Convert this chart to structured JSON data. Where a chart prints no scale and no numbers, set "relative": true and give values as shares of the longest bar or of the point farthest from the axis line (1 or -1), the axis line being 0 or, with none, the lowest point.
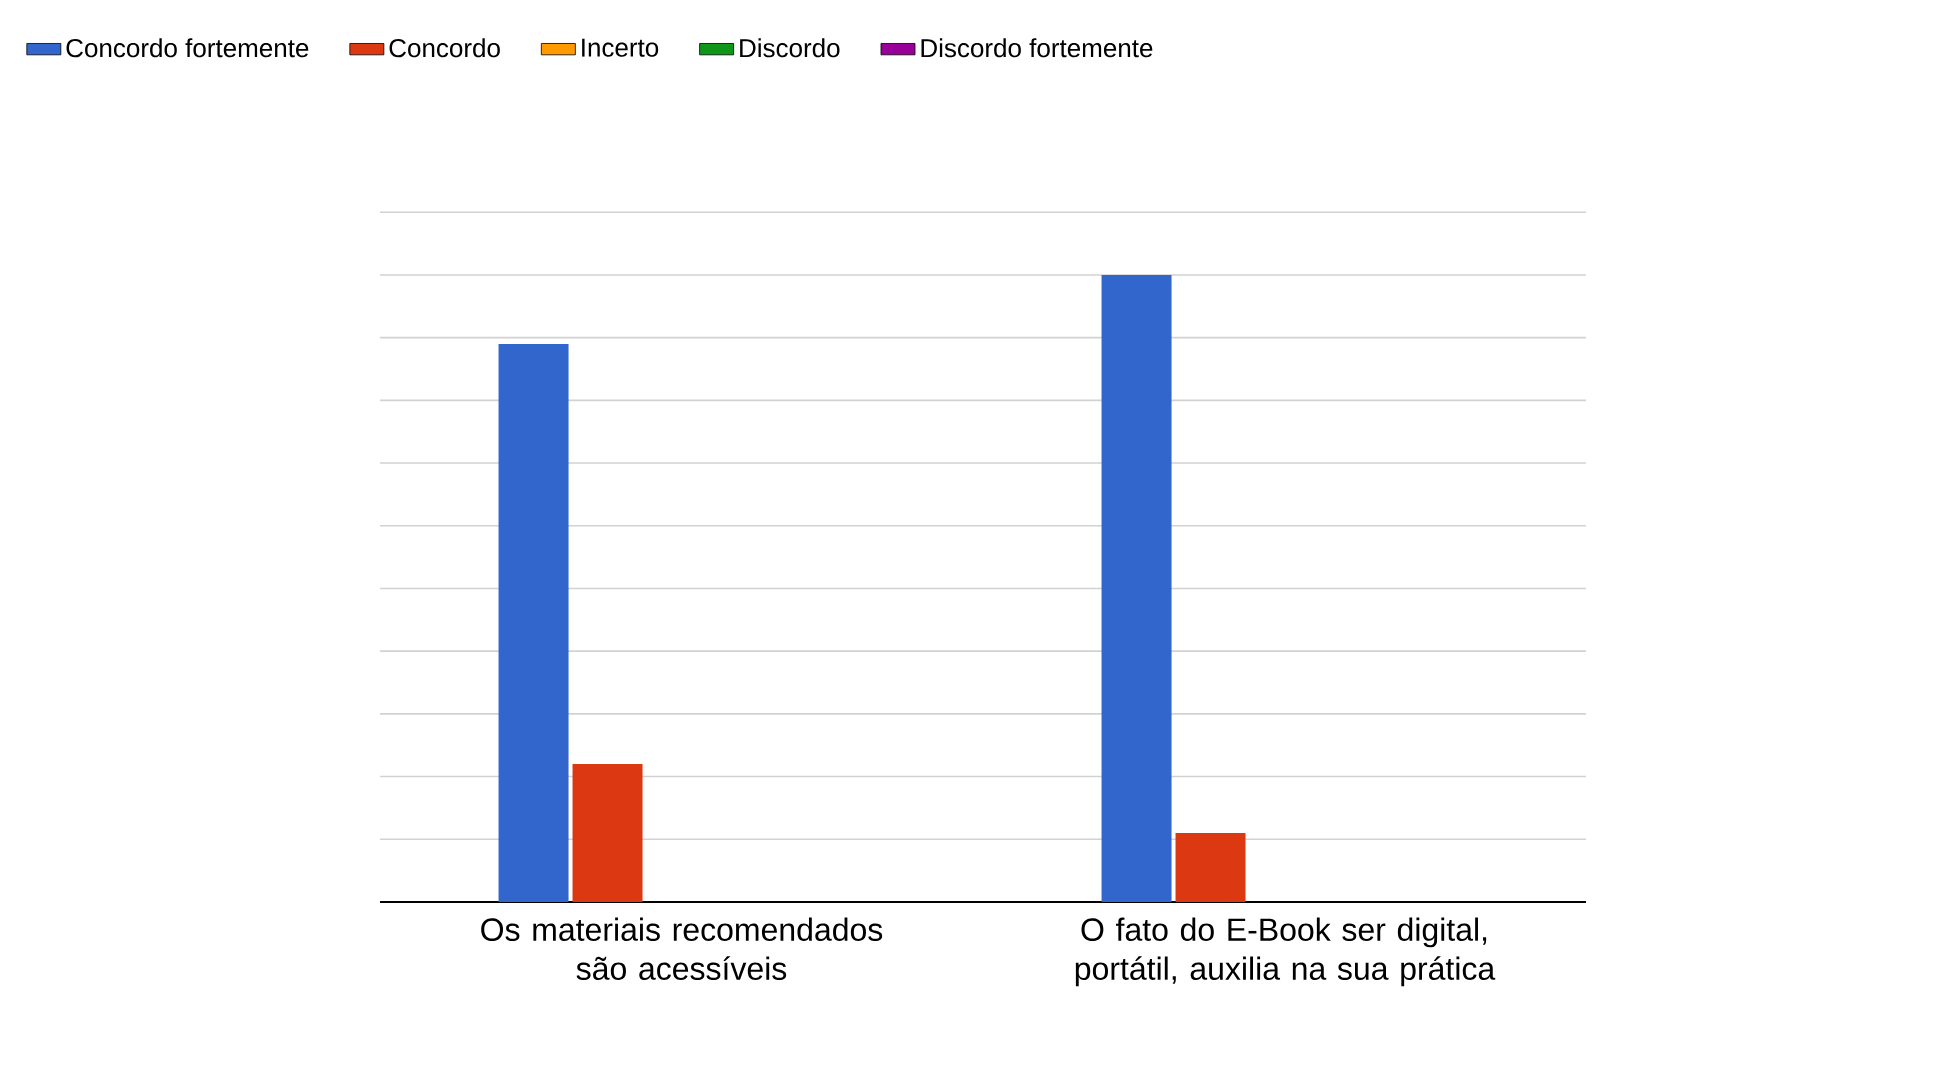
{
  "chart_data": {
    "type": "bar",
    "relative": true,
    "grid": "y",
    "legend": "top",
    "categories": [
      "Os materiais recomendados são acessíveis",
      "O fato do E-Book ser digital, portátil, auxilia na sua prática"
    ],
    "series": [
      {
        "name": "Concordo fortemente",
        "color": "#3366cc",
        "values": [
          0.89,
          1
        ]
      },
      {
        "name": "Concordo",
        "color": "#dc3912",
        "values": [
          0.22,
          0.11
        ]
      },
      {
        "name": "Incerto",
        "color": "#ff9900",
        "values": [
          0,
          0
        ]
      },
      {
        "name": "Discordo",
        "color": "#109618",
        "values": [
          0,
          0
        ]
      },
      {
        "name": "Discordo fortemente",
        "color": "#990099",
        "values": [
          0,
          0
        ]
      }
    ]
  }
}
